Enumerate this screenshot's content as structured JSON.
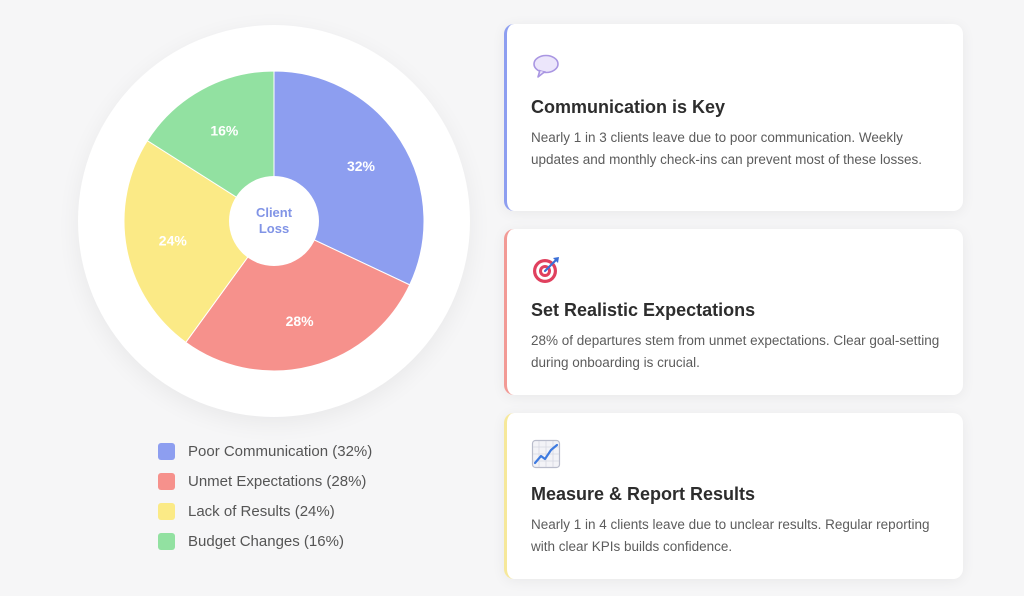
{
  "chart_data": {
    "type": "pie",
    "center_label": [
      "Client",
      "Loss"
    ],
    "slices": [
      {
        "name": "Poor Communication",
        "value": 32,
        "label": "32%",
        "color": "#8d9ef0"
      },
      {
        "name": "Unmet Expectations",
        "value": 28,
        "label": "28%",
        "color": "#f6918c"
      },
      {
        "name": "Lack of Results",
        "value": 24,
        "label": "24%",
        "color": "#fbea86"
      },
      {
        "name": "Budget Changes",
        "value": 16,
        "label": "16%",
        "color": "#92e1a1"
      }
    ]
  },
  "legend": [
    {
      "label": "Poor Communication (32%)",
      "color": "#8d9ef0"
    },
    {
      "label": "Unmet Expectations (28%)",
      "color": "#f6918c"
    },
    {
      "label": "Lack of Results (24%)",
      "color": "#fbea86"
    },
    {
      "label": "Budget Changes (16%)",
      "color": "#92e1a1"
    }
  ],
  "cards": [
    {
      "icon": "speech-bubble-icon",
      "title": "Communication is Key",
      "text": "Nearly 1 in 3 clients leave due to poor communication. Weekly updates and monthly check-ins can prevent most of these losses.",
      "accent": "#8d9ef0"
    },
    {
      "icon": "target-icon",
      "title": "Set Realistic Expectations",
      "text": "28% of departures stem from unmet expectations. Clear goal-setting during onboarding is crucial.",
      "accent": "#f29a95"
    },
    {
      "icon": "chart-increasing-icon",
      "title": "Measure & Report Results",
      "text": "Nearly 1 in 4 clients leave due to unclear results. Regular reporting with clear KPIs builds confidence.",
      "accent": "#f6e89a"
    }
  ]
}
